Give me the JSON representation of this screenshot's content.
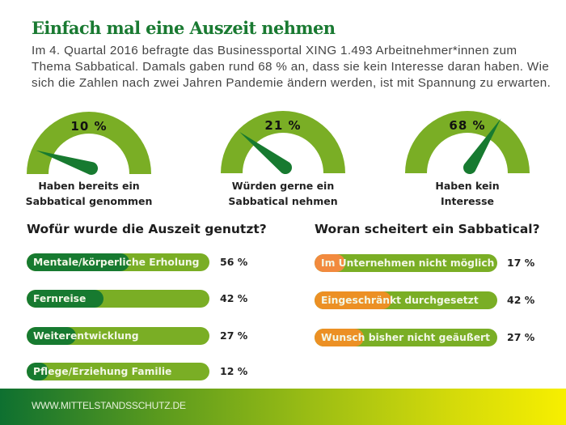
{
  "title": "Einfach mal eine Auszeit nehmen",
  "intro": "Im 4. Quartal 2016 befragte das Businessportal XING 1.493 Arbeitnehmer*innen zum Thema Sabbatical. Damals gaben rund 68 % an, dass sie kein Interesse daran haben. Wie sich die Zahlen nach zwei Jahren Pandemie ändern werden, ist mit Spannung zu erwarten.",
  "colors": {
    "title": "#1a7a32",
    "gauge": "#7aae25",
    "needle": "#177a30",
    "bar_bg": "#7aae25",
    "bar_fill_green": "#177a30",
    "bar_fill_orange": "#ec9024",
    "bar_fill_orange_light": "#f28a3e"
  },
  "chart_data": [
    {
      "type": "gauge",
      "title": "",
      "gauges": [
        {
          "value": 10,
          "value_label": "10 %",
          "label_line1": "Haben bereits ein",
          "label_line2": "Sabbatical genommen"
        },
        {
          "value": 21,
          "value_label": "21 %",
          "label_line1": "Würden gerne ein",
          "label_line2": "Sabbatical nehmen"
        },
        {
          "value": 68,
          "value_label": "68 %",
          "label_line1": "Haben kein",
          "label_line2": "Interesse"
        }
      ],
      "range": [
        0,
        100
      ]
    },
    {
      "type": "bar",
      "title": "Wofür wurde die Auszeit genutzt?",
      "categories": [
        "Mentale/körperliche Erholung",
        "Fernreise",
        "Weiterentwicklung",
        "Pflege/Erziehung Familie"
      ],
      "values": [
        56,
        42,
        27,
        12
      ],
      "value_labels": [
        "56 %",
        "42 %",
        "27 %",
        "12 %"
      ],
      "xlim": [
        0,
        100
      ]
    },
    {
      "type": "bar",
      "title": "Woran scheitert ein Sabbatical?",
      "categories": [
        "Im Unternehmen nicht möglich",
        "Eingeschränkt durchgesetzt",
        "Wunsch bisher nicht geäußert"
      ],
      "values": [
        17,
        42,
        27
      ],
      "value_labels": [
        "17 %",
        "42 %",
        "27 %"
      ],
      "xlim": [
        0,
        100
      ]
    }
  ],
  "footer": {
    "url": "WWW.MITTELSTANDSSCHUTZ.DE"
  }
}
